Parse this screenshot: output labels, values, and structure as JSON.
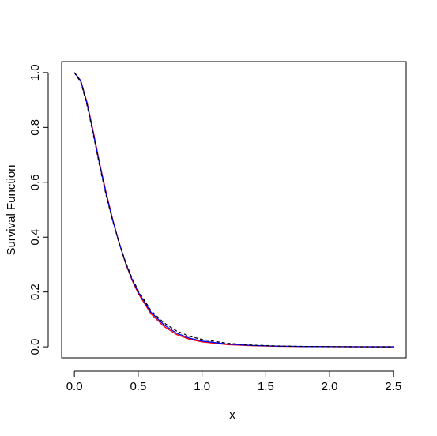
{
  "chart_data": {
    "type": "line",
    "title": "",
    "xlabel": "x",
    "ylabel": "Survival Function",
    "xlim": [
      -0.1,
      2.6
    ],
    "ylim": [
      -0.04,
      1.04
    ],
    "xticks": [
      "0.0",
      "0.5",
      "1.0",
      "1.5",
      "2.0",
      "2.5"
    ],
    "yticks": [
      "0.0",
      "0.2",
      "0.4",
      "0.6",
      "0.8",
      "1.0"
    ],
    "grid": false,
    "series": [
      {
        "color": "#ff0000",
        "style": "solid",
        "x": [
          0.0,
          0.05,
          0.1,
          0.15,
          0.2,
          0.25,
          0.3,
          0.35,
          0.4,
          0.45,
          0.5,
          0.6,
          0.7,
          0.8,
          0.9,
          1.0,
          1.2,
          1.4,
          1.6,
          1.8,
          2.0,
          2.25,
          2.5
        ],
        "y": [
          1.0,
          0.97,
          0.89,
          0.78,
          0.665,
          0.56,
          0.465,
          0.38,
          0.305,
          0.245,
          0.195,
          0.12,
          0.075,
          0.045,
          0.028,
          0.018,
          0.008,
          0.004,
          0.002,
          0.001,
          0.0005,
          0.0002,
          0.0001
        ]
      },
      {
        "color": "#0000ff",
        "style": "solid",
        "x": [
          0.0,
          0.05,
          0.1,
          0.15,
          0.2,
          0.25,
          0.3,
          0.35,
          0.4,
          0.45,
          0.5,
          0.6,
          0.7,
          0.8,
          0.9,
          1.0,
          1.2,
          1.4,
          1.6,
          1.8,
          2.0,
          2.25,
          2.5
        ],
        "y": [
          1.0,
          0.97,
          0.885,
          0.775,
          0.66,
          0.555,
          0.462,
          0.38,
          0.308,
          0.248,
          0.2,
          0.126,
          0.081,
          0.05,
          0.032,
          0.021,
          0.01,
          0.005,
          0.0025,
          0.0012,
          0.0006,
          0.0003,
          0.0001
        ]
      },
      {
        "color": "#000000",
        "style": "dashed",
        "x": [
          0.0,
          0.05,
          0.1,
          0.15,
          0.2,
          0.25,
          0.3,
          0.35,
          0.4,
          0.45,
          0.5,
          0.6,
          0.7,
          0.8,
          0.9,
          1.0,
          1.2,
          1.4,
          1.6,
          1.8,
          2.0,
          2.25,
          2.5
        ],
        "y": [
          1.0,
          0.965,
          0.88,
          0.77,
          0.655,
          0.55,
          0.46,
          0.38,
          0.31,
          0.252,
          0.205,
          0.132,
          0.088,
          0.058,
          0.039,
          0.027,
          0.013,
          0.006,
          0.003,
          0.0015,
          0.0008,
          0.0003,
          0.0001
        ]
      }
    ]
  }
}
